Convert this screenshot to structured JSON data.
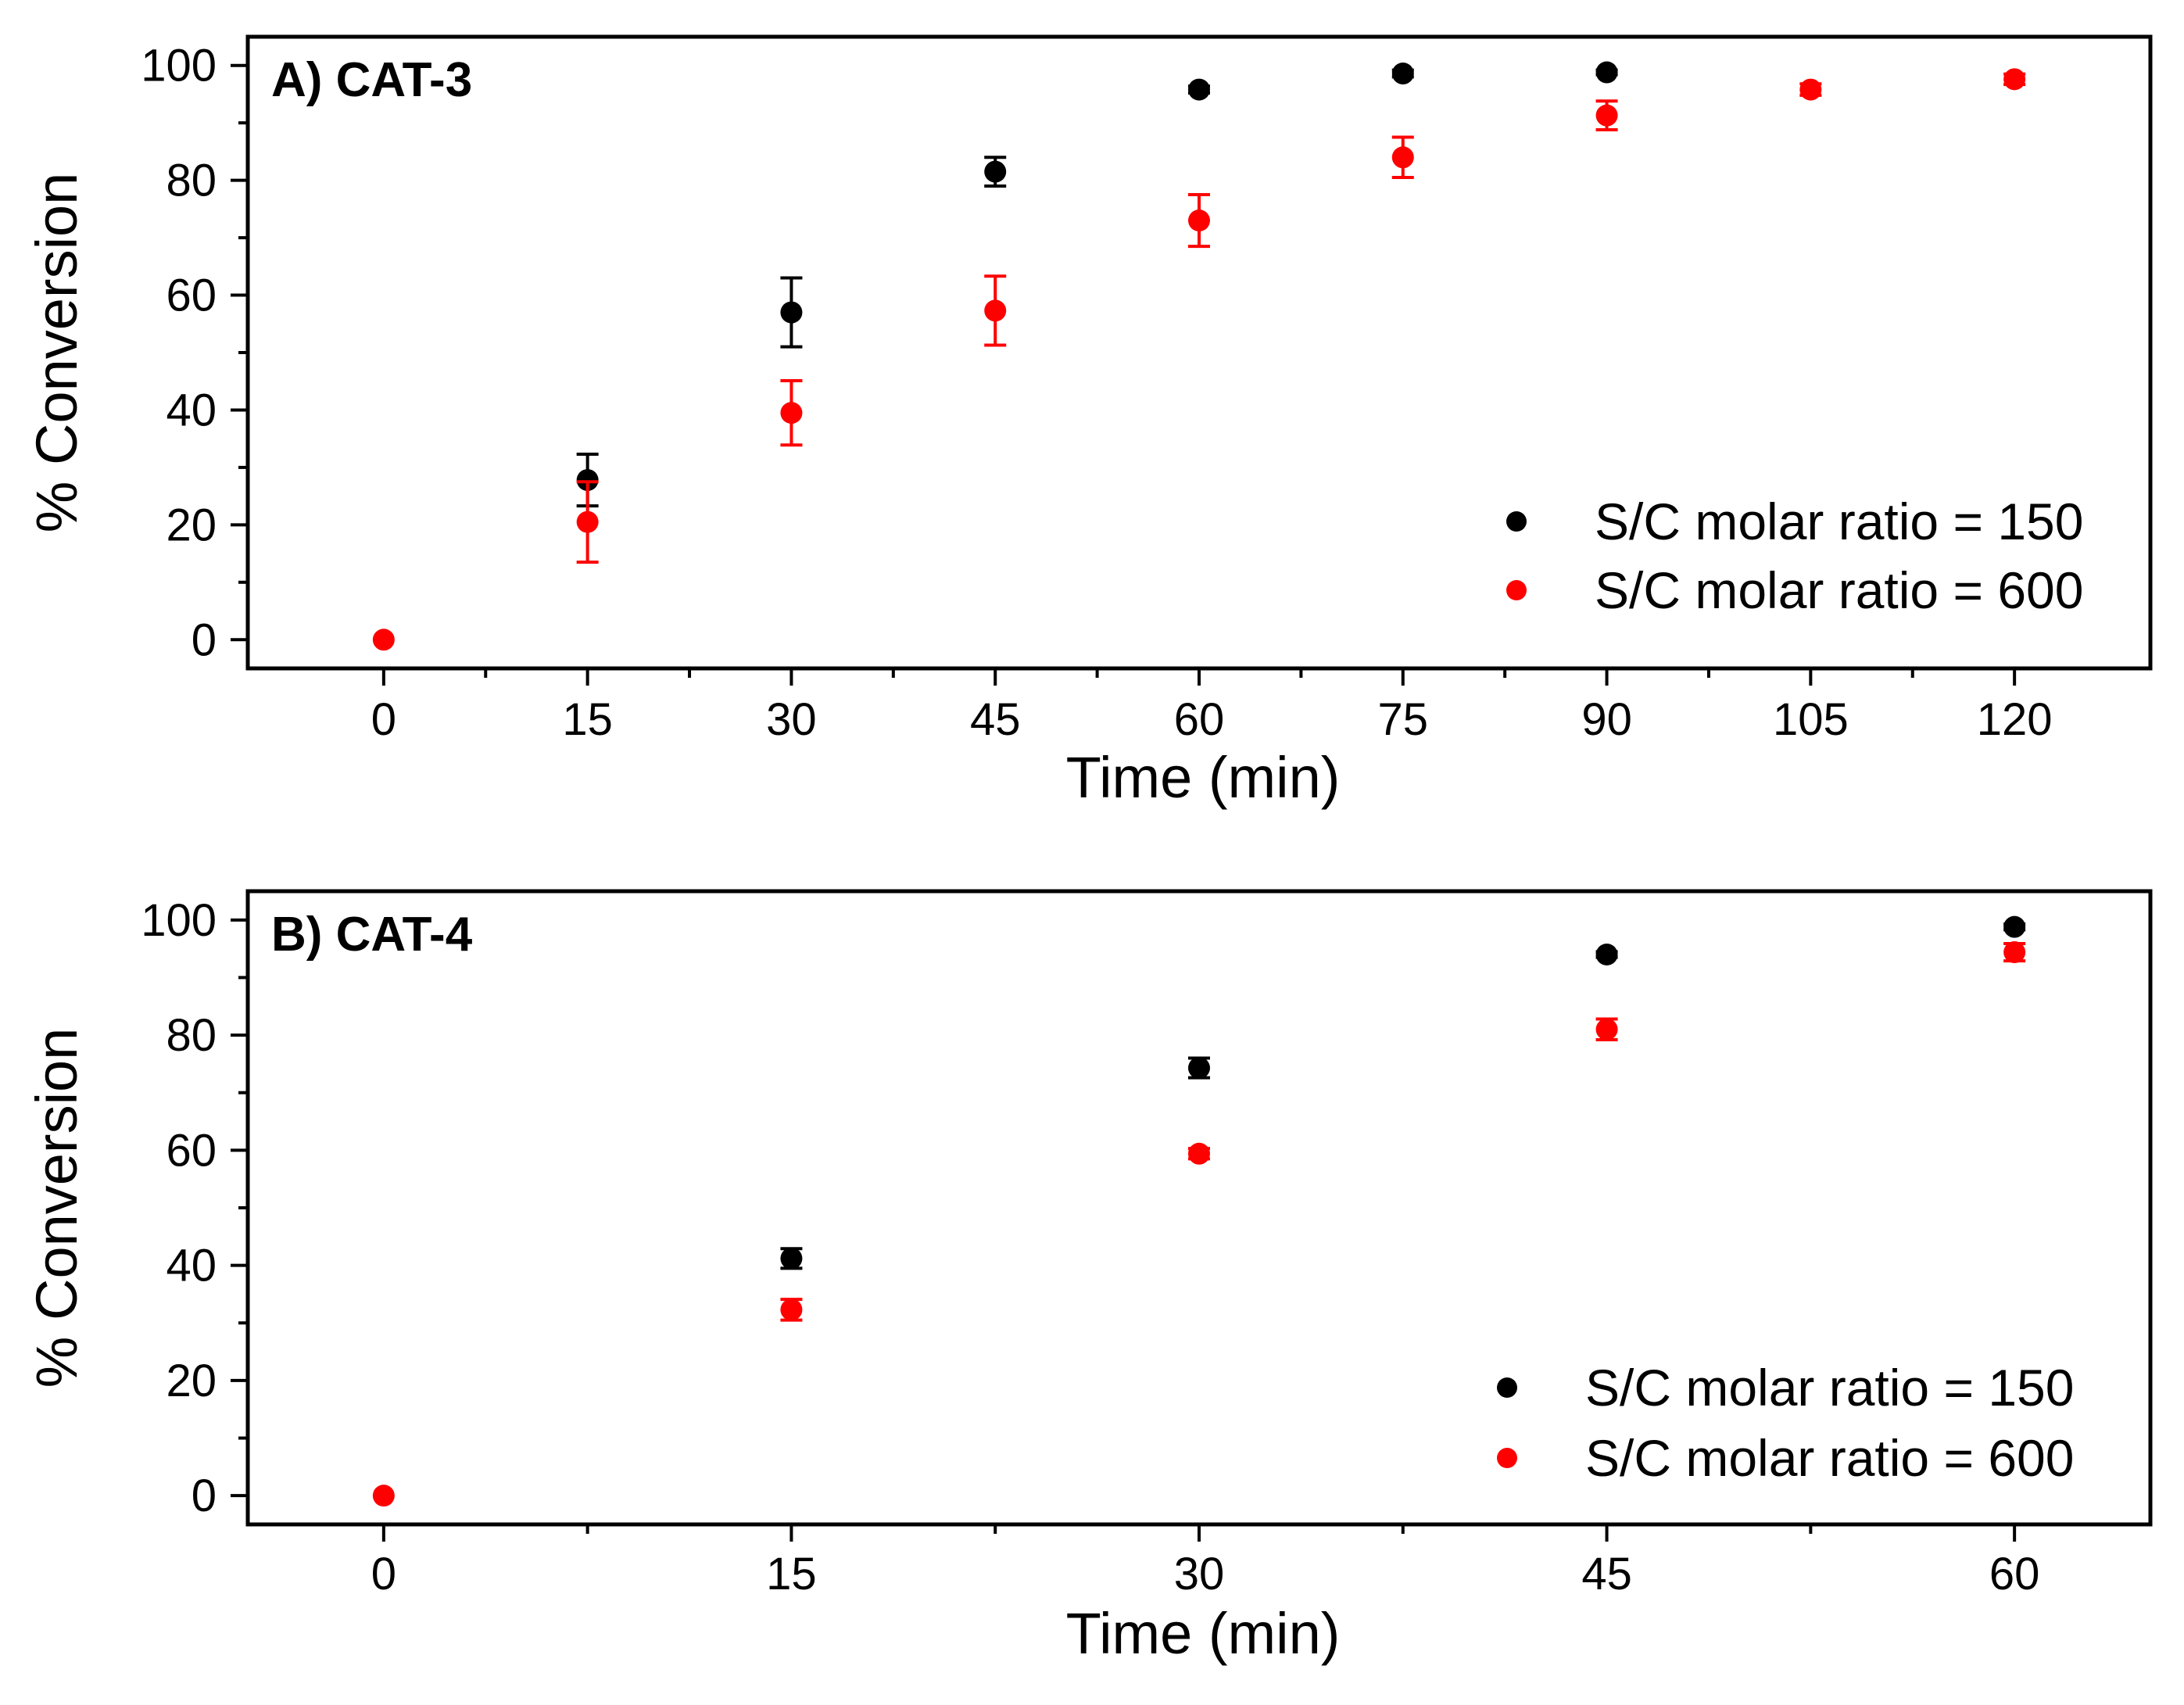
{
  "chart_data": [
    {
      "type": "scatter",
      "title": "A) CAT-3",
      "xlabel": "Time (min)",
      "ylabel": "% Conversion",
      "xlim": [
        -10,
        130
      ],
      "ylim": [
        -5,
        105
      ],
      "xticks": [
        0,
        15,
        30,
        45,
        60,
        75,
        90,
        105,
        120
      ],
      "xtick_labels": [
        "0",
        "15",
        "30",
        "45",
        "60",
        "75",
        "90",
        "105",
        "120"
      ],
      "yticks": [
        0,
        20,
        40,
        60,
        80,
        100
      ],
      "ytick_labels": [
        "0",
        "20",
        "40",
        "60",
        "80",
        "100"
      ],
      "legend_position": "bottom-right",
      "series": [
        {
          "name": "S/C molar ratio = 150",
          "color": "#000000",
          "x": [
            15,
            30,
            45,
            60,
            75,
            90
          ],
          "y": [
            27.8,
            57.0,
            81.5,
            95.8,
            98.6,
            98.8
          ],
          "err": [
            4.5,
            6.0,
            2.5,
            0.6,
            0.6,
            0.4
          ]
        },
        {
          "name": "S/C molar ratio = 600",
          "color": "#ff0000",
          "x": [
            0,
            15,
            30,
            45,
            60,
            75,
            90,
            105,
            120
          ],
          "y": [
            0,
            20.5,
            39.5,
            57.3,
            73.0,
            84.0,
            91.3,
            95.8,
            97.6
          ],
          "err": [
            0,
            7.0,
            5.6,
            6.0,
            4.5,
            3.5,
            2.5,
            1.0,
            0.9
          ]
        }
      ]
    },
    {
      "type": "scatter",
      "title": "B) CAT-4",
      "xlabel": "Time (min)",
      "ylabel": "% Conversion",
      "xlim": [
        -5,
        65
      ],
      "ylim": [
        -5,
        105
      ],
      "xticks": [
        0,
        15,
        30,
        45,
        60
      ],
      "xtick_labels": [
        "0",
        "15",
        "30",
        "45",
        "60"
      ],
      "yticks": [
        0,
        20,
        40,
        60,
        80,
        100
      ],
      "ytick_labels": [
        "0",
        "20",
        "40",
        "60",
        "80",
        "100"
      ],
      "legend_position": "bottom-right",
      "series": [
        {
          "name": "S/C molar ratio = 150",
          "color": "#000000",
          "x": [
            15,
            30,
            45,
            60
          ],
          "y": [
            41.2,
            74.3,
            94.0,
            98.8
          ],
          "err": [
            1.7,
            1.7,
            0.5,
            0.5
          ]
        },
        {
          "name": "S/C molar ratio = 600",
          "color": "#ff0000",
          "x": [
            0,
            15,
            30,
            45,
            60
          ],
          "y": [
            0,
            32.3,
            59.4,
            81.0,
            94.4
          ],
          "err": [
            0,
            1.8,
            0.9,
            1.8,
            1.5
          ]
        }
      ]
    }
  ]
}
